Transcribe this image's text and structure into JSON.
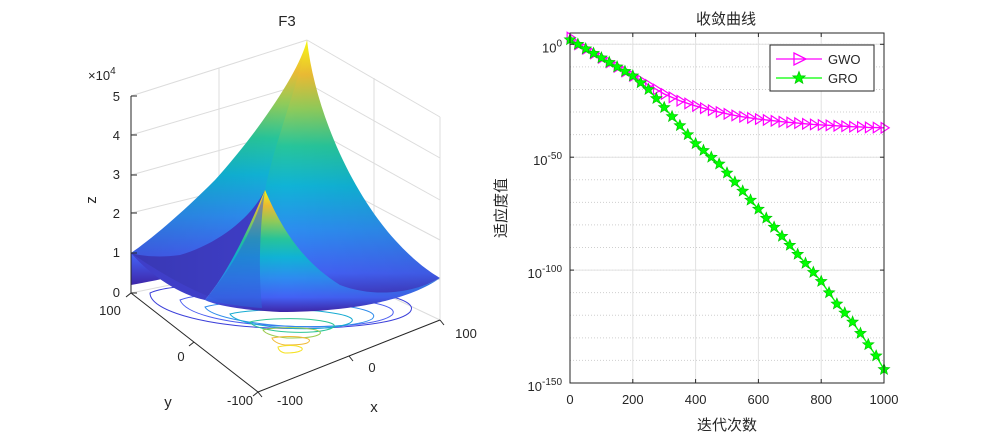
{
  "chart_data": [
    {
      "type": "surface",
      "title": "F3",
      "xlabel": "x",
      "ylabel": "y",
      "zlabel": "z",
      "z_multiplier": "×10",
      "z_multiplier_exp": "4",
      "x_ticks": [
        "-100",
        "0",
        "100"
      ],
      "y_ticks": [
        "-100",
        "0",
        "100"
      ],
      "z_ticks": [
        "0",
        "1",
        "2",
        "3",
        "4",
        "5"
      ],
      "xlim": [
        -100,
        100
      ],
      "ylim": [
        -100,
        100
      ],
      "zlim": [
        0,
        50000
      ],
      "colormap": "parula",
      "contour_levels": 8,
      "grid": true
    },
    {
      "type": "line",
      "title": "收敛曲线",
      "xlabel": "迭代次数",
      "ylabel": "适应度值",
      "y_scale": "log",
      "xlim": [
        0,
        1000
      ],
      "ylim_exp": [
        -150,
        5
      ],
      "x_ticks": [
        "0",
        "200",
        "400",
        "600",
        "800",
        "1000"
      ],
      "y_ticks": [
        {
          "base": "10",
          "exp": "0",
          "value_exp": 0
        },
        {
          "base": "10",
          "exp": "-50",
          "value_exp": -50
        },
        {
          "base": "10",
          "exp": "-100",
          "value_exp": -100
        },
        {
          "base": "10",
          "exp": "-150",
          "value_exp": -150
        }
      ],
      "legend_position": "top-right",
      "grid": true,
      "series": [
        {
          "name": "GWO",
          "color": "#ff00ff",
          "marker": "triangle-right",
          "x": [
            0,
            25,
            50,
            75,
            100,
            125,
            150,
            175,
            200,
            225,
            250,
            275,
            300,
            325,
            350,
            375,
            400,
            425,
            450,
            475,
            500,
            525,
            550,
            575,
            600,
            625,
            650,
            675,
            700,
            725,
            750,
            775,
            800,
            825,
            850,
            875,
            900,
            925,
            950,
            975,
            1000
          ],
          "log10_y": [
            3,
            0,
            -2,
            -4,
            -6,
            -8,
            -10,
            -12,
            -14,
            -16,
            -18,
            -20,
            -22,
            -23.5,
            -25,
            -26.2,
            -27.3,
            -28.3,
            -29.2,
            -30,
            -30.8,
            -31.5,
            -32.1,
            -32.6,
            -33.1,
            -33.5,
            -33.9,
            -34.3,
            -34.6,
            -34.9,
            -35.2,
            -35.5,
            -35.7,
            -35.9,
            -36.1,
            -36.3,
            -36.5,
            -36.6,
            -36.8,
            -36.9,
            -37
          ]
        },
        {
          "name": "GRO",
          "color": "#00ff00",
          "marker": "star",
          "x": [
            0,
            25,
            50,
            75,
            100,
            125,
            150,
            175,
            200,
            225,
            250,
            275,
            300,
            325,
            350,
            375,
            400,
            425,
            450,
            475,
            500,
            525,
            550,
            575,
            600,
            625,
            650,
            675,
            700,
            725,
            750,
            775,
            800,
            825,
            850,
            875,
            900,
            925,
            950,
            975,
            1000
          ],
          "log10_y": [
            2,
            0,
            -2,
            -4,
            -6,
            -8,
            -10,
            -12,
            -14,
            -17,
            -20,
            -24,
            -28,
            -32,
            -36,
            -40,
            -44,
            -47,
            -50,
            -53,
            -57,
            -61,
            -65,
            -69,
            -73,
            -77,
            -81,
            -85,
            -89,
            -93,
            -97,
            -101,
            -105,
            -110,
            -115,
            -119,
            -123,
            -128,
            -133,
            -138,
            -144
          ]
        }
      ]
    }
  ]
}
